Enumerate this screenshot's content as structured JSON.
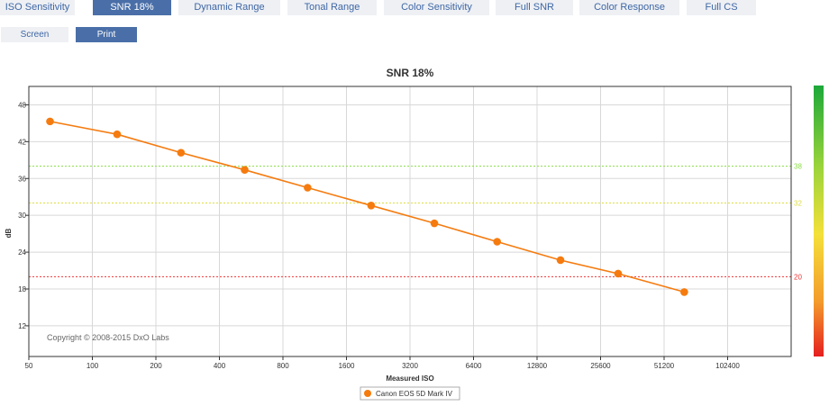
{
  "tabs": [
    {
      "label": "ISO Sensitivity",
      "active": false
    },
    {
      "label": "SNR 18%",
      "active": true
    },
    {
      "label": "Dynamic Range",
      "active": false
    },
    {
      "label": "Tonal Range",
      "active": false
    },
    {
      "label": "Color Sensitivity",
      "active": false
    },
    {
      "label": "Full SNR",
      "active": false
    },
    {
      "label": "Color Response",
      "active": false
    },
    {
      "label": "Full CS",
      "active": false
    }
  ],
  "view_buttons": {
    "screen": "Screen",
    "print": "Print",
    "selected": "Print"
  },
  "chart_data": {
    "type": "line",
    "title": "SNR 18%",
    "xlabel": "Measured ISO",
    "ylabel": "dB",
    "x_scale": "log2",
    "x_ticks": [
      "50",
      "100",
      "200",
      "400",
      "800",
      "1600",
      "3200",
      "6400",
      "12800",
      "25600",
      "51200",
      "102400"
    ],
    "y_ticks": [
      12,
      18,
      24,
      30,
      36,
      42,
      48
    ],
    "ylim": [
      7,
      51
    ],
    "reference_lines": [
      {
        "value": 38,
        "label": "38",
        "color": "#88dd44"
      },
      {
        "value": 32,
        "label": "32",
        "color": "#dddd44"
      },
      {
        "value": 20,
        "label": "20",
        "color": "#ee3333"
      }
    ],
    "series": [
      {
        "name": "Canon EOS 5D Mark IV",
        "color": "#f57b0f",
        "points": [
          {
            "x": 63,
            "y": 45.3
          },
          {
            "x": 131,
            "y": 43.2
          },
          {
            "x": 263,
            "y": 40.2
          },
          {
            "x": 527,
            "y": 37.4
          },
          {
            "x": 1047,
            "y": 34.5
          },
          {
            "x": 2095,
            "y": 31.6
          },
          {
            "x": 4175,
            "y": 28.7
          },
          {
            "x": 8281,
            "y": 25.7
          },
          {
            "x": 16529,
            "y": 22.7
          },
          {
            "x": 31000,
            "y": 20.5
          },
          {
            "x": 63800,
            "y": 17.5
          }
        ]
      }
    ],
    "copyright": "Copyright © 2008-2015 DxO Labs",
    "legend_position": "bottom-center",
    "grid": true
  }
}
